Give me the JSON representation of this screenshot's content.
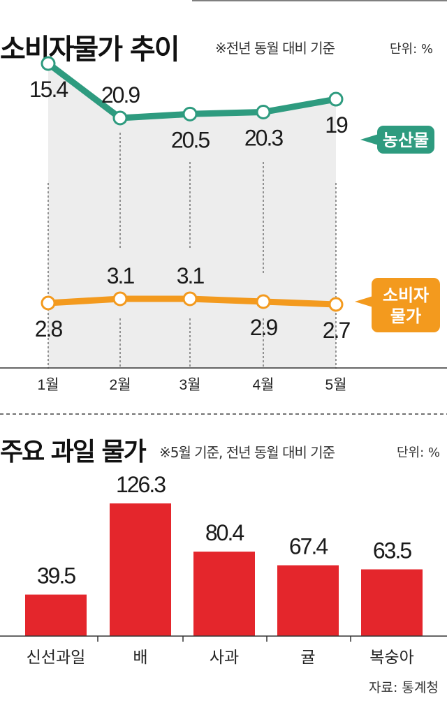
{
  "chart_data": [
    {
      "type": "line",
      "title": "소비자물가 추이",
      "note": "※전년 동월 대비 기준",
      "unit": "단위: %",
      "categories": [
        "1월",
        "2월",
        "3월",
        "4월",
        "5월"
      ],
      "series": [
        {
          "name": "농산물",
          "values": [
            15.4,
            20.9,
            20.5,
            20.3,
            19
          ],
          "labels": [
            "15.4",
            "20.9",
            "20.5",
            "20.3",
            "19"
          ],
          "color": "#2e9b7f"
        },
        {
          "name": "소비자\n물가",
          "values": [
            2.8,
            3.1,
            3.1,
            2.9,
            2.7
          ],
          "labels": [
            "2.8",
            "3.1",
            "3.1",
            "2.9",
            "2.7"
          ],
          "color": "#f39a1e"
        }
      ],
      "scale": "broken",
      "grid": false
    },
    {
      "type": "bar",
      "title": "주요 과일 물가",
      "note": "※5월 기준, 전년 동월 대비 기준",
      "unit": "단위: %",
      "categories": [
        "신선과일",
        "배",
        "사과",
        "귤",
        "복숭아"
      ],
      "values": [
        39.5,
        126.3,
        80.4,
        67.4,
        63.5
      ],
      "labels": [
        "39.5",
        "126.3",
        "80.4",
        "67.4",
        "63.5"
      ],
      "color": "#e4262c"
    }
  ],
  "source": "자료: 통계청",
  "colors": {
    "area": "#ededed",
    "axis": "#333333",
    "line1": "#2e9b7f",
    "line2": "#f39a1e",
    "bar": "#e4262c"
  }
}
